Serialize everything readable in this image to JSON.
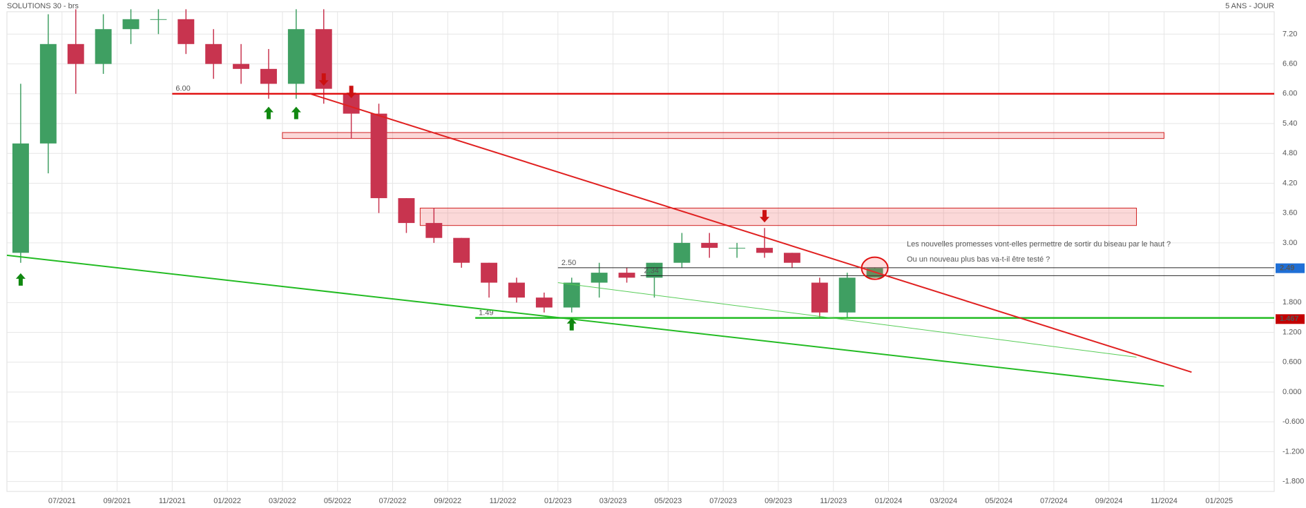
{
  "chart_data": {
    "type": "candlestick",
    "title": "SOLUTIONS 30 - brs",
    "subtitle": "5 ANS - JOUR",
    "x": [
      "2021-05",
      "2021-06",
      "2021-07",
      "2021-08",
      "2021-09",
      "2021-10",
      "2021-11",
      "2021-12",
      "2022-01",
      "2022-02",
      "2022-03",
      "2022-04",
      "2022-05",
      "2022-06",
      "2022-07",
      "2022-08",
      "2022-09",
      "2022-10",
      "2022-11",
      "2022-12",
      "2023-01",
      "2023-02",
      "2023-03",
      "2023-04",
      "2023-05",
      "2023-06",
      "2023-07",
      "2023-08",
      "2023-09",
      "2023-10",
      "2023-11",
      "2023-12"
    ],
    "open": [
      2.8,
      5.0,
      7.0,
      6.6,
      7.3,
      7.5,
      7.5,
      7.0,
      6.6,
      6.5,
      6.2,
      7.3,
      6.0,
      5.6,
      3.9,
      3.4,
      3.1,
      2.6,
      2.2,
      1.9,
      1.7,
      2.2,
      2.4,
      2.3,
      2.6,
      3.0,
      2.9,
      2.9,
      2.8,
      2.2,
      1.6,
      2.3
    ],
    "high": [
      6.2,
      7.6,
      7.7,
      7.6,
      7.7,
      7.7,
      7.7,
      7.3,
      7.0,
      6.9,
      7.7,
      7.7,
      6.0,
      5.8,
      3.9,
      3.7,
      3.1,
      2.6,
      2.3,
      2.0,
      2.3,
      2.6,
      2.5,
      2.6,
      3.2,
      3.2,
      3.0,
      3.3,
      2.8,
      2.3,
      2.4,
      2.5
    ],
    "low": [
      2.6,
      4.4,
      6.0,
      6.4,
      7.0,
      7.2,
      6.8,
      6.3,
      6.2,
      5.9,
      5.9,
      5.8,
      5.1,
      3.6,
      3.2,
      3.0,
      2.5,
      1.9,
      1.8,
      1.6,
      1.6,
      1.9,
      2.2,
      1.9,
      2.5,
      2.7,
      2.7,
      2.7,
      2.5,
      1.5,
      1.5,
      2.3
    ],
    "close": [
      5.0,
      7.0,
      6.6,
      7.3,
      7.5,
      7.5,
      7.0,
      6.6,
      6.5,
      6.2,
      7.3,
      6.1,
      5.6,
      3.9,
      3.4,
      3.1,
      2.6,
      2.2,
      1.9,
      1.7,
      2.2,
      2.4,
      2.3,
      2.6,
      3.0,
      2.9,
      2.9,
      2.8,
      2.6,
      1.6,
      2.3,
      2.49
    ],
    "up_color": "#3f9f62",
    "down_color": "#c8344f",
    "xlim": [
      "2021-05",
      "2025-03"
    ],
    "xticks": [
      {
        "value": "2021-07",
        "label": "07/2021"
      },
      {
        "value": "2021-09",
        "label": "09/2021"
      },
      {
        "value": "2021-11",
        "label": "11/2021"
      },
      {
        "value": "2022-01",
        "label": "01/2022"
      },
      {
        "value": "2022-03",
        "label": "03/2022"
      },
      {
        "value": "2022-05",
        "label": "05/2022"
      },
      {
        "value": "2022-07",
        "label": "07/2022"
      },
      {
        "value": "2022-09",
        "label": "09/2022"
      },
      {
        "value": "2022-11",
        "label": "11/2022"
      },
      {
        "value": "2023-01",
        "label": "01/2023"
      },
      {
        "value": "2023-03",
        "label": "03/2023"
      },
      {
        "value": "2023-05",
        "label": "05/2023"
      },
      {
        "value": "2023-07",
        "label": "07/2023"
      },
      {
        "value": "2023-09",
        "label": "09/2023"
      },
      {
        "value": "2023-11",
        "label": "11/2023"
      },
      {
        "value": "2024-01",
        "label": "01/2024"
      },
      {
        "value": "2024-03",
        "label": "03/2024"
      },
      {
        "value": "2024-05",
        "label": "05/2024"
      },
      {
        "value": "2024-07",
        "label": "07/2024"
      },
      {
        "value": "2024-09",
        "label": "09/2024"
      },
      {
        "value": "2024-11",
        "label": "11/2024"
      },
      {
        "value": "2025-01",
        "label": "01/2025"
      }
    ],
    "ylim": [
      -2.0,
      7.65
    ],
    "yticks": [
      {
        "value": 7.2,
        "label": "7.20"
      },
      {
        "value": 6.6,
        "label": "6.60"
      },
      {
        "value": 6,
        "label": "6.00"
      },
      {
        "value": 5.4,
        "label": "5.40"
      },
      {
        "value": 4.8,
        "label": "4.80"
      },
      {
        "value": 4.2,
        "label": "4.20"
      },
      {
        "value": 3.6,
        "label": "3.60"
      },
      {
        "value": 3,
        "label": "3.00"
      },
      {
        "value": 1.8,
        "label": "1.800"
      },
      {
        "value": 1.2,
        "label": "1.200"
      },
      {
        "value": 0.6,
        "label": "0.600"
      },
      {
        "value": 0,
        "label": "0.000"
      },
      {
        "value": -0.6,
        "label": "-0.600"
      },
      {
        "value": -1.2,
        "label": "-1.200"
      },
      {
        "value": -1.8,
        "label": "-1.800"
      }
    ],
    "grid": true,
    "levels": [
      {
        "value": 6,
        "label": "6.00",
        "from": "2021-11",
        "color": "#e01010"
      },
      {
        "value": 1.49,
        "label": "1.49",
        "from": "2022-10",
        "color": "#22bb22"
      },
      {
        "value": 2.5,
        "label": "2.50",
        "from": "2023-01",
        "color": "#222222"
      },
      {
        "value": 2.34,
        "label": "2.34",
        "from": "2023-04",
        "color": "#222222"
      }
    ],
    "price_labels": [
      {
        "value": 2.49,
        "label": "2.49",
        "color": "#1f6fd6"
      },
      {
        "value": 1.467,
        "label": "1.467",
        "color": "#c40000"
      }
    ],
    "trendlines": [
      {
        "from": [
          "2022-04",
          6.0
        ],
        "to": [
          "2024-12",
          0.4
        ],
        "color": "#e02020"
      },
      {
        "from": [
          "2021-05",
          2.75
        ],
        "to": [
          "2024-11",
          0.12
        ],
        "color": "#22bb22"
      },
      {
        "from": [
          "2023-01",
          2.2
        ],
        "to": [
          "2024-10",
          0.7
        ],
        "color": "#55cc55"
      }
    ],
    "zones": [
      {
        "from": "2022-03",
        "to": "2024-11",
        "low": 5.1,
        "high": 5.22
      },
      {
        "from": "2022-08",
        "to": "2024-10",
        "low": 3.35,
        "high": 3.7
      }
    ],
    "arrows": [
      {
        "x": "2021-05",
        "y": 2.25,
        "dir": "up"
      },
      {
        "x": "2022-02",
        "y": 5.6,
        "dir": "up"
      },
      {
        "x": "2022-03",
        "y": 5.6,
        "dir": "up"
      },
      {
        "x": "2023-01",
        "y": 1.35,
        "dir": "up"
      },
      {
        "x": "2022-04",
        "y": 6.3,
        "dir": "down"
      },
      {
        "x": "2022-05",
        "y": 6.05,
        "dir": "down"
      },
      {
        "x": "2023-08",
        "y": 3.55,
        "dir": "down"
      }
    ],
    "circle": {
      "x": "2023-12",
      "y": 2.49
    },
    "notes": [
      "Les nouvelles promesses vont-elles permettre de sortir du biseau par le haut ?",
      "Ou un nouveau plus bas va-t-il être testé ?"
    ]
  }
}
